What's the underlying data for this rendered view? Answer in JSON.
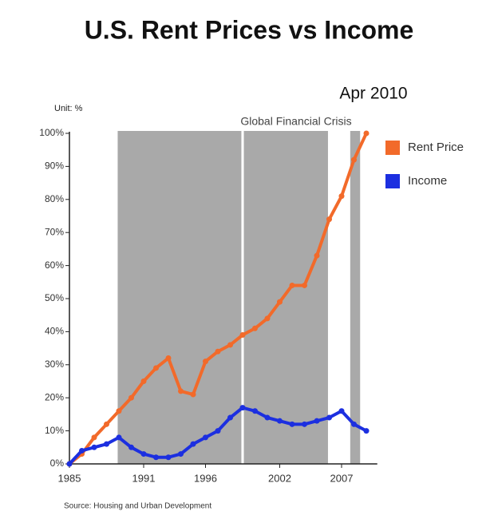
{
  "chart_data": {
    "type": "line",
    "title": "U.S. Rent Prices vs Income",
    "date_label": "Apr 2010",
    "unit_label": "Unit: %",
    "annotation": "Global Financial Crisis",
    "source": "Source: Housing and Urban Development",
    "x": [
      1985,
      1986,
      1987,
      1988,
      1989,
      1990,
      1991,
      1992,
      1993,
      1994,
      1995,
      1996,
      1997,
      1998,
      1999,
      2000,
      2001,
      2002,
      2003,
      2004,
      2005,
      2006,
      2007,
      2008,
      2009
    ],
    "series": [
      {
        "name": "Rent Price",
        "color": "#f26a2a",
        "values": [
          0,
          3,
          8,
          12,
          16,
          20,
          25,
          29,
          32,
          22,
          21,
          31,
          34,
          36,
          39,
          41,
          44,
          49,
          54,
          54,
          63,
          74,
          81,
          92,
          100
        ]
      },
      {
        "name": "Income",
        "color": "#1c2fe0",
        "values": [
          0,
          4,
          5,
          6,
          8,
          5,
          3,
          2,
          2,
          3,
          6,
          8,
          10,
          14,
          17,
          16,
          14,
          13,
          12,
          12,
          13,
          14,
          16,
          12,
          10
        ]
      }
    ],
    "shaded_regions": [
      [
        1988.9,
        1998.9
      ],
      [
        1999.1,
        2005.9
      ],
      [
        2007.7,
        2008.5
      ]
    ],
    "shade_color": "#a9a9a9",
    "xlim": [
      1985,
      2009.5
    ],
    "xticks": [
      1985,
      1991,
      1996,
      2002,
      2007
    ],
    "ylim": [
      0,
      100
    ],
    "yticks": [
      {
        "value": 0,
        "label": "0%"
      },
      {
        "value": 10,
        "label": "10%"
      },
      {
        "value": 20,
        "label": "20%"
      },
      {
        "value": 30,
        "label": "30%"
      },
      {
        "value": 40,
        "label": "40%"
      },
      {
        "value": 50,
        "label": "50%"
      },
      {
        "value": 60,
        "label": "60%"
      },
      {
        "value": 70,
        "label": "70%"
      },
      {
        "value": 80,
        "label": "80%"
      },
      {
        "value": 90,
        "label": "90%"
      },
      {
        "value": 100,
        "label": "100%"
      }
    ]
  }
}
